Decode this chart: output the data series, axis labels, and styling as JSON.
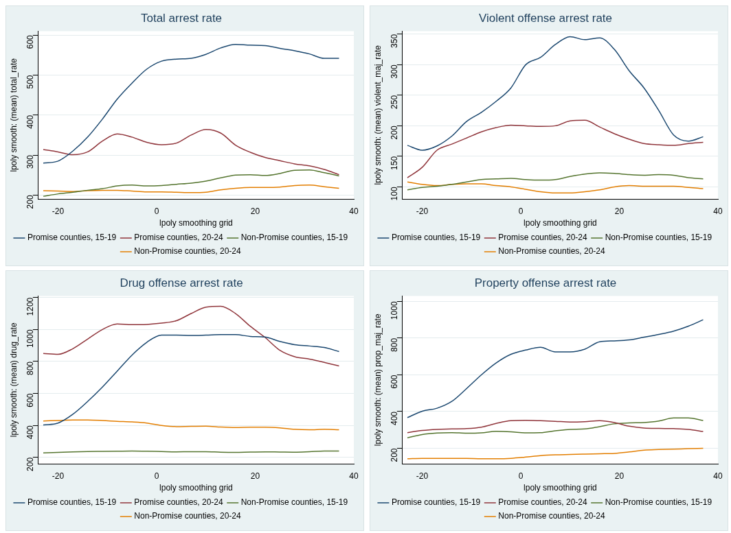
{
  "chart_data": [
    {
      "type": "line",
      "title": "Total arrest rate",
      "xlabel": "lpoly smoothing grid",
      "ylabel": "lpoly smooth: (mean) total_rate",
      "x": [
        -23,
        -20,
        -17,
        -14,
        -11,
        -8,
        -5,
        -2,
        1,
        4,
        7,
        10,
        13,
        16,
        19,
        22,
        25,
        28,
        31,
        34,
        37
      ],
      "xlim": [
        -24,
        40
      ],
      "xticks": [
        -20,
        0,
        20,
        40
      ],
      "ylim": [
        190,
        610
      ],
      "yticks": [
        200,
        300,
        400,
        500,
        600
      ],
      "grid": "y",
      "legend": "bottom",
      "series": [
        {
          "name": "Promise counties, 15-19",
          "color": "#1a476f",
          "values": [
            280,
            285,
            310,
            345,
            390,
            440,
            480,
            515,
            535,
            540,
            542,
            552,
            568,
            577,
            575,
            574,
            567,
            561,
            553,
            542,
            542
          ]
        },
        {
          "name": "Promise counties, 20-24",
          "color": "#90353b",
          "values": [
            314,
            308,
            301,
            308,
            335,
            353,
            345,
            332,
            326,
            330,
            350,
            364,
            355,
            325,
            307,
            294,
            286,
            278,
            273,
            264,
            251
          ]
        },
        {
          "name": "Non-Promise counties, 15-19",
          "color": "#55752f",
          "values": [
            197,
            203,
            207,
            212,
            216,
            223,
            225,
            223,
            224,
            227,
            230,
            235,
            243,
            250,
            251,
            249,
            254,
            262,
            263,
            256,
            248
          ]
        },
        {
          "name": "Non-Promise counties, 20-24",
          "color": "#e37e00",
          "values": [
            211,
            210,
            209,
            211,
            212,
            212,
            210,
            208,
            208,
            207,
            206,
            207,
            213,
            217,
            219,
            219,
            220,
            224,
            225,
            221,
            217
          ]
        }
      ]
    },
    {
      "type": "line",
      "title": "Violent offense arrest rate",
      "xlabel": "lpoly smoothing grid",
      "ylabel": "lpoly smooth: (mean) violent_maj_rate",
      "x": [
        -23,
        -20,
        -17,
        -14,
        -11,
        -8,
        -5,
        -2,
        1,
        4,
        7,
        10,
        13,
        16,
        19,
        22,
        25,
        28,
        31,
        34,
        37
      ],
      "xlim": [
        -24,
        40
      ],
      "xticks": [
        -20,
        0,
        20,
        40
      ],
      "ylim": [
        80,
        355
      ],
      "yticks": [
        100,
        150,
        200,
        250,
        300,
        350
      ],
      "grid": "y",
      "legend": "bottom",
      "series": [
        {
          "name": "Promise counties, 15-19",
          "color": "#1a476f",
          "values": [
            168,
            160,
            167,
            183,
            207,
            222,
            240,
            262,
            300,
            312,
            333,
            346,
            341,
            344,
            325,
            290,
            262,
            225,
            185,
            175,
            182
          ]
        },
        {
          "name": "Promise counties, 20-24",
          "color": "#90353b",
          "values": [
            115,
            132,
            160,
            170,
            180,
            190,
            197,
            201,
            200,
            199,
            200,
            208,
            209,
            198,
            187,
            178,
            171,
            169,
            168,
            171,
            173
          ]
        },
        {
          "name": "Non-Promise counties, 15-19",
          "color": "#55752f",
          "values": [
            95,
            99,
            101,
            104,
            108,
            112,
            113,
            114,
            112,
            111,
            112,
            117,
            121,
            123,
            122,
            120,
            119,
            120,
            119,
            115,
            113
          ]
        },
        {
          "name": "Non-Promise counties, 20-24",
          "color": "#e37e00",
          "values": [
            108,
            104,
            102,
            104,
            105,
            105,
            102,
            100,
            96,
            92,
            90,
            90,
            92,
            95,
            100,
            102,
            101,
            101,
            101,
            99,
            97
          ]
        }
      ]
    },
    {
      "type": "line",
      "title": "Drug offense arrest rate",
      "xlabel": "lpoly smoothing grid",
      "ylabel": "lpoly smooth: (mean) drug_rate",
      "x": [
        -23,
        -20,
        -17,
        -14,
        -11,
        -8,
        -5,
        -2,
        1,
        4,
        7,
        10,
        13,
        16,
        19,
        22,
        25,
        28,
        31,
        34,
        37
      ],
      "xlim": [
        -24,
        40
      ],
      "xticks": [
        -20,
        0,
        20,
        40
      ],
      "ylim": [
        160,
        1210
      ],
      "yticks": [
        200,
        400,
        600,
        800,
        1000,
        1200
      ],
      "grid": "y",
      "legend": "bottom",
      "series": [
        {
          "name": "Promise counties, 15-19",
          "color": "#1a476f",
          "values": [
            403,
            415,
            470,
            550,
            640,
            740,
            840,
            920,
            965,
            965,
            963,
            965,
            968,
            968,
            957,
            953,
            925,
            905,
            897,
            888,
            862
          ]
        },
        {
          "name": "Promise counties, 20-24",
          "color": "#90353b",
          "values": [
            850,
            845,
            880,
            940,
            1000,
            1035,
            1030,
            1032,
            1040,
            1055,
            1100,
            1140,
            1145,
            1100,
            1020,
            950,
            870,
            830,
            815,
            795,
            772
          ]
        },
        {
          "name": "Non-Promise counties, 15-19",
          "color": "#55752f",
          "values": [
            228,
            232,
            235,
            237,
            238,
            239,
            240,
            239,
            237,
            235,
            236,
            236,
            233,
            232,
            234,
            235,
            234,
            233,
            236,
            240,
            240
          ]
        },
        {
          "name": "Non-Promise counties, 20-24",
          "color": "#e37e00",
          "values": [
            428,
            431,
            434,
            434,
            431,
            426,
            422,
            415,
            400,
            393,
            395,
            396,
            390,
            387,
            389,
            389,
            385,
            376,
            373,
            376,
            373
          ]
        }
      ]
    },
    {
      "type": "line",
      "title": "Property offense arrest rate",
      "xlabel": "lpoly smoothing grid",
      "ylabel": "lpoly smooth: (mean) prop_maj_rate",
      "x": [
        -23,
        -20,
        -17,
        -14,
        -11,
        -8,
        -5,
        -2,
        1,
        4,
        7,
        10,
        13,
        16,
        19,
        22,
        25,
        28,
        31,
        34,
        37
      ],
      "xlim": [
        -24,
        40
      ],
      "xticks": [
        -20,
        0,
        20,
        40
      ],
      "ylim": [
        115,
        1030
      ],
      "yticks": [
        200,
        400,
        600,
        800,
        1000
      ],
      "grid": "y",
      "legend": "bottom",
      "series": [
        {
          "name": "Promise counties, 15-19",
          "color": "#1a476f",
          "values": [
            367,
            402,
            418,
            455,
            525,
            600,
            665,
            712,
            735,
            750,
            725,
            725,
            740,
            780,
            785,
            790,
            805,
            820,
            838,
            865,
            900
          ]
        },
        {
          "name": "Promise counties, 20-24",
          "color": "#90353b",
          "values": [
            285,
            297,
            303,
            305,
            307,
            315,
            335,
            350,
            352,
            350,
            347,
            343,
            345,
            350,
            340,
            320,
            310,
            308,
            307,
            303,
            291
          ]
        },
        {
          "name": "Non-Promise counties, 15-19",
          "color": "#55752f",
          "values": [
            257,
            275,
            283,
            285,
            282,
            284,
            292,
            290,
            284,
            285,
            295,
            303,
            305,
            318,
            333,
            338,
            340,
            348,
            365,
            365,
            351
          ]
        },
        {
          "name": "Non-Promise counties, 20-24",
          "color": "#e37e00",
          "values": [
            143,
            145,
            145,
            145,
            145,
            143,
            143,
            145,
            152,
            160,
            164,
            166,
            168,
            170,
            172,
            180,
            190,
            193,
            195,
            198,
            200
          ]
        }
      ]
    }
  ]
}
